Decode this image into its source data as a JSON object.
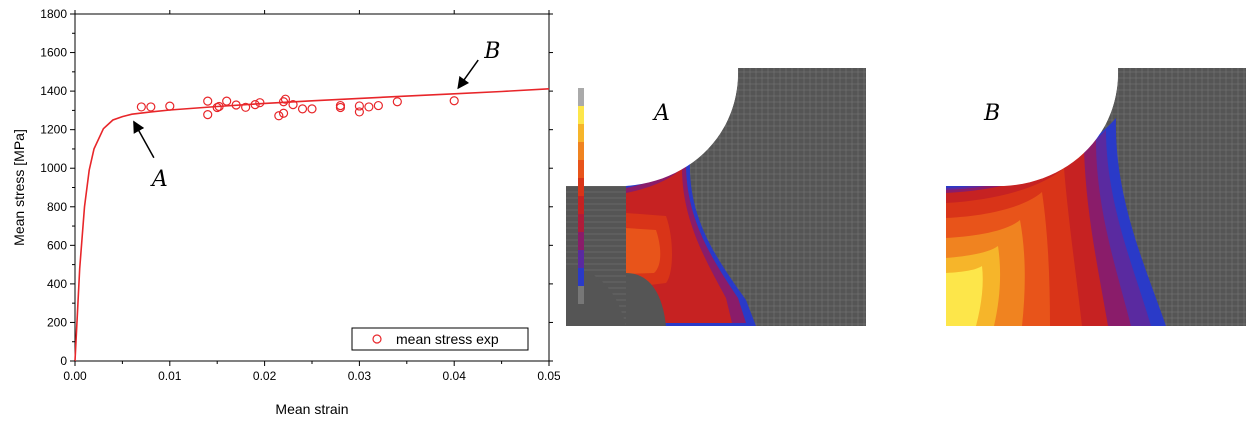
{
  "chart_data": {
    "type": "scatter",
    "xlabel": "Mean strain",
    "ylabel": "Mean stress [MPa]",
    "xlim": [
      0,
      0.05
    ],
    "ylim": [
      0,
      1800
    ],
    "x_ticks": [
      "0.00",
      "0.01",
      "0.02",
      "0.03",
      "0.04",
      "0.05"
    ],
    "y_ticks": [
      "0",
      "200",
      "400",
      "600",
      "800",
      "1000",
      "1200",
      "1400",
      "1600",
      "1800"
    ],
    "legend": {
      "position": "bottom-right",
      "entries": [
        "mean stress exp"
      ]
    },
    "series": [
      {
        "name": "mean stress exp",
        "marker": "open-circle",
        "color": "#e8262a",
        "points": [
          [
            0.007,
            1318
          ],
          [
            0.008,
            1318
          ],
          [
            0.01,
            1322
          ],
          [
            0.014,
            1348
          ],
          [
            0.014,
            1278
          ],
          [
            0.015,
            1315
          ],
          [
            0.0152,
            1320
          ],
          [
            0.016,
            1348
          ],
          [
            0.017,
            1328
          ],
          [
            0.018,
            1316
          ],
          [
            0.019,
            1330
          ],
          [
            0.0195,
            1340
          ],
          [
            0.0215,
            1272
          ],
          [
            0.022,
            1285
          ],
          [
            0.022,
            1345
          ],
          [
            0.0222,
            1358
          ],
          [
            0.023,
            1330
          ],
          [
            0.024,
            1308
          ],
          [
            0.025,
            1308
          ],
          [
            0.028,
            1325
          ],
          [
            0.028,
            1315
          ],
          [
            0.03,
            1323
          ],
          [
            0.03,
            1292
          ],
          [
            0.031,
            1318
          ],
          [
            0.032,
            1325
          ],
          [
            0.034,
            1345
          ],
          [
            0.04,
            1350
          ]
        ]
      },
      {
        "type": "line",
        "color": "#e8262a",
        "points": [
          [
            0,
            0
          ],
          [
            0.0005,
            480
          ],
          [
            0.001,
            800
          ],
          [
            0.0015,
            990
          ],
          [
            0.002,
            1100
          ],
          [
            0.003,
            1205
          ],
          [
            0.004,
            1250
          ],
          [
            0.005,
            1268
          ],
          [
            0.006,
            1280
          ],
          [
            0.008,
            1292
          ],
          [
            0.01,
            1302
          ],
          [
            0.015,
            1320
          ],
          [
            0.02,
            1336
          ],
          [
            0.025,
            1350
          ],
          [
            0.03,
            1362
          ],
          [
            0.035,
            1374
          ],
          [
            0.04,
            1386
          ],
          [
            0.045,
            1398
          ],
          [
            0.05,
            1412
          ]
        ]
      }
    ],
    "annotations": [
      {
        "label": "A",
        "point": [
          0.006,
          1272
        ]
      },
      {
        "label": "B",
        "point": [
          0.04,
          1385
        ]
      }
    ]
  },
  "fem": {
    "panels": [
      {
        "label": "A",
        "state": "early"
      },
      {
        "label": "B",
        "state": "late"
      }
    ],
    "colors": {
      "mesh": "#555555",
      "mesh_line": "#7a7a7a",
      "contour": [
        "#fde64a",
        "#f6b52a",
        "#f08320",
        "#e8541a",
        "#d93418",
        "#c62222",
        "#b01c3a",
        "#8a1c6a",
        "#5a2aa0",
        "#2a3ac8"
      ],
      "background": "#ffffff"
    }
  }
}
